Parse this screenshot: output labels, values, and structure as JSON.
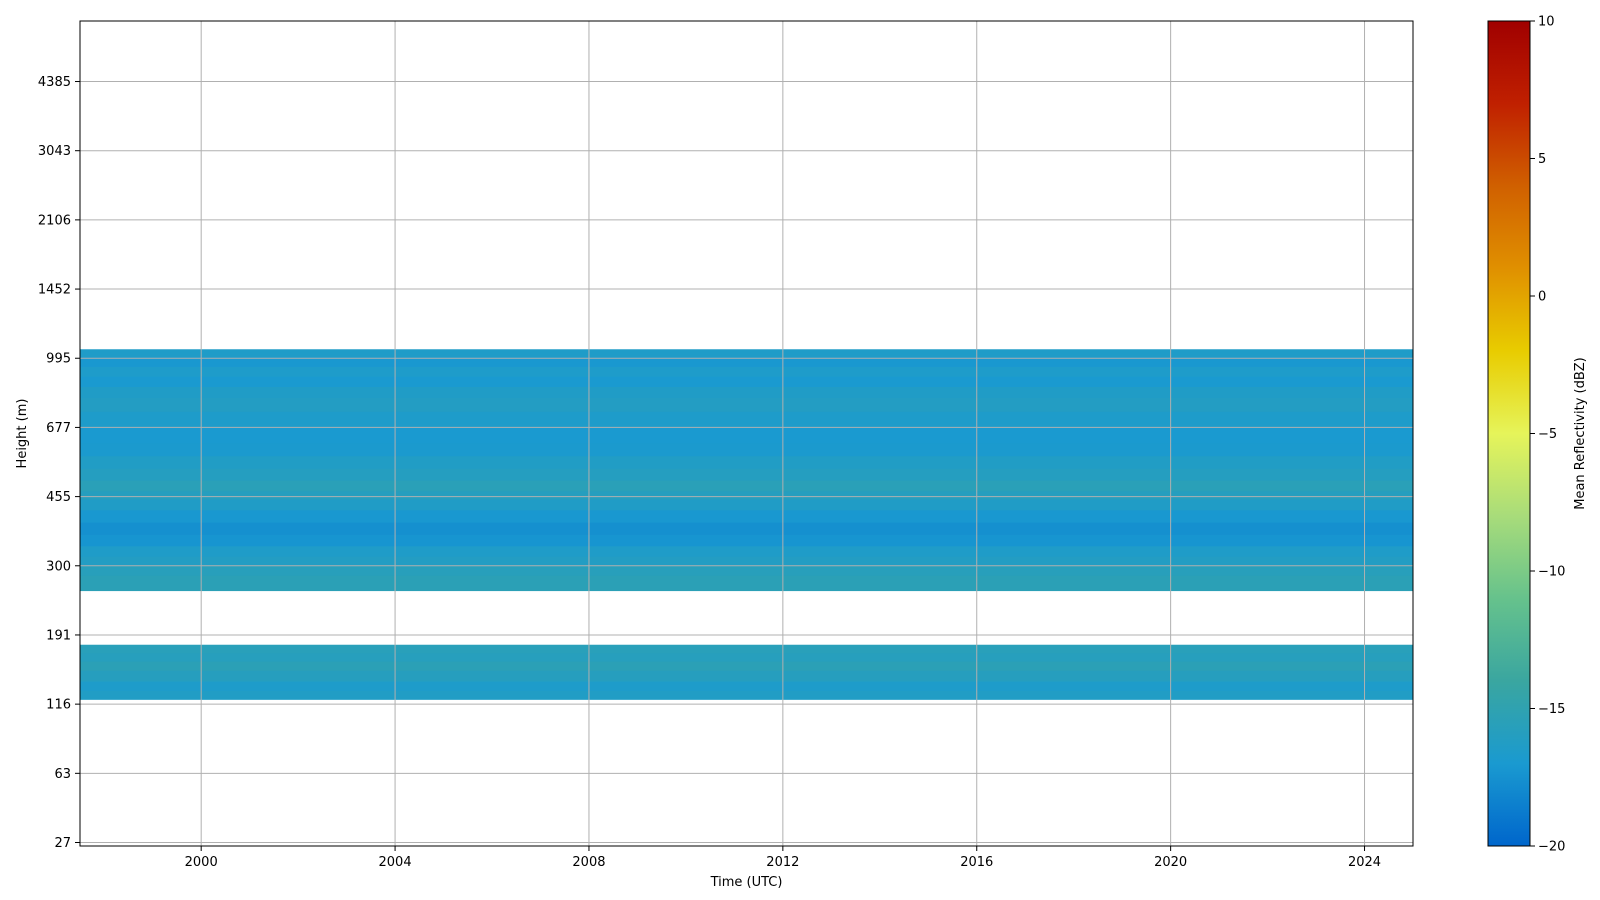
{
  "chart_data": {
    "type": "heatmap",
    "title": "",
    "xlabel": "Time (UTC)",
    "ylabel": "Height (m)",
    "x_ticks": [
      "2000",
      "2004",
      "2008",
      "2012",
      "2016",
      "2020",
      "2024"
    ],
    "x_tick_values": [
      2000,
      2004,
      2008,
      2012,
      2016,
      2020,
      2024
    ],
    "xlim": [
      1997.5,
      2025.0
    ],
    "y_ticks": [
      "27",
      "63",
      "116",
      "191",
      "300",
      "455",
      "677",
      "995",
      "1452",
      "2106",
      "3043",
      "4385"
    ],
    "y_tick_values": [
      27,
      63,
      116,
      191,
      300,
      455,
      677,
      995,
      1452,
      2106,
      3043,
      4385
    ],
    "y_scale": "nonlinear (tick labels equally spaced)",
    "ylim": [
      27,
      6000
    ],
    "grid": true,
    "colorbar": {
      "label": "Mean Reflectivity (dBZ)",
      "range": [
        -20,
        10
      ],
      "ticks": [
        "10",
        "5",
        "0",
        "−5",
        "−10",
        "−15",
        "−20"
      ],
      "tick_values": [
        10,
        5,
        0,
        -5,
        -10,
        -15,
        -20
      ],
      "colormap": [
        "#0066cc",
        "#1a9ad0",
        "#3aa6a0",
        "#66c28c",
        "#a8dc7a",
        "#e6f45a",
        "#e8cc00",
        "#e09000",
        "#d06000",
        "#c02000",
        "#a00000"
      ]
    },
    "bands": [
      {
        "y_bottom": 120,
        "y_top": 178,
        "value": -16.0
      },
      {
        "y_bottom": 255,
        "y_top": 1045,
        "value": -16.8
      }
    ],
    "rows": [
      {
        "y_bottom": 120,
        "y_top": 128,
        "value": -16.3
      },
      {
        "y_bottom": 128,
        "y_top": 137,
        "value": -16.6
      },
      {
        "y_bottom": 137,
        "y_top": 148,
        "value": -15.9
      },
      {
        "y_bottom": 148,
        "y_top": 158,
        "value": -15.4
      },
      {
        "y_bottom": 158,
        "y_top": 168,
        "value": -15.8
      },
      {
        "y_bottom": 168,
        "y_top": 178,
        "value": -15.6
      },
      {
        "y_bottom": 255,
        "y_top": 282,
        "value": -15.4
      },
      {
        "y_bottom": 282,
        "y_top": 300,
        "value": -15.7
      },
      {
        "y_bottom": 300,
        "y_top": 318,
        "value": -16.2
      },
      {
        "y_bottom": 318,
        "y_top": 338,
        "value": -16.5
      },
      {
        "y_bottom": 338,
        "y_top": 362,
        "value": -17.3
      },
      {
        "y_bottom": 362,
        "y_top": 390,
        "value": -17.6
      },
      {
        "y_bottom": 390,
        "y_top": 420,
        "value": -17.1
      },
      {
        "y_bottom": 420,
        "y_top": 448,
        "value": -16.4
      },
      {
        "y_bottom": 448,
        "y_top": 470,
        "value": -15.9
      },
      {
        "y_bottom": 470,
        "y_top": 500,
        "value": -15.5
      },
      {
        "y_bottom": 500,
        "y_top": 535,
        "value": -16.0
      },
      {
        "y_bottom": 535,
        "y_top": 575,
        "value": -16.3
      },
      {
        "y_bottom": 575,
        "y_top": 620,
        "value": -16.9
      },
      {
        "y_bottom": 620,
        "y_top": 680,
        "value": -17.0
      },
      {
        "y_bottom": 680,
        "y_top": 740,
        "value": -16.6
      },
      {
        "y_bottom": 740,
        "y_top": 800,
        "value": -16.2
      },
      {
        "y_bottom": 800,
        "y_top": 850,
        "value": -16.4
      },
      {
        "y_bottom": 850,
        "y_top": 900,
        "value": -17.0
      },
      {
        "y_bottom": 900,
        "y_top": 950,
        "value": -16.6
      },
      {
        "y_bottom": 950,
        "y_top": 1000,
        "value": -17.1
      },
      {
        "y_bottom": 1000,
        "y_top": 1045,
        "value": -16.5
      }
    ]
  }
}
